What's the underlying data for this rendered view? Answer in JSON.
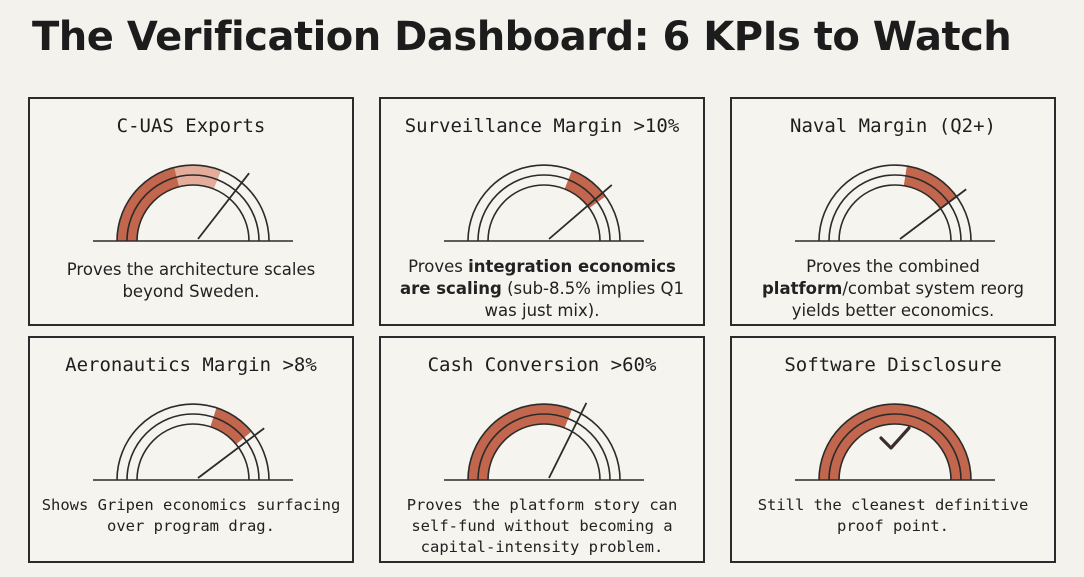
{
  "title": "The Verification Dashboard: 6 KPIs to Watch",
  "kpis": [
    {
      "title": "C-UAS Exports",
      "desc_parts": [
        {
          "text": "Proves the architecture scales beyond Sweden.",
          "bold": false
        }
      ],
      "fill_start": 0.0,
      "fill_end": 0.62,
      "light_start": 0.42,
      "needle": 0.72,
      "check": false,
      "mono_desc": false
    },
    {
      "title": "Surveillance Margin >10%",
      "desc_parts": [
        {
          "text": "Proves ",
          "bold": false
        },
        {
          "text": "integration economics are scaling",
          "bold": true
        },
        {
          "text": " (sub-8.5% implies Q1 was just mix).",
          "bold": false
        }
      ],
      "fill_start": 0.62,
      "fill_end": 0.8,
      "light_start": null,
      "needle": 0.78,
      "check": false,
      "mono_desc": false
    },
    {
      "title": "Naval Margin (Q2+)",
      "desc_parts": [
        {
          "text": "Proves the combined ",
          "bold": false
        },
        {
          "text": "platform",
          "bold": true
        },
        {
          "text": "/combat system reorg yields better economics.",
          "bold": false
        }
      ],
      "fill_start": 0.55,
      "fill_end": 0.8,
      "light_start": null,
      "needle": 0.8,
      "check": false,
      "mono_desc": false
    },
    {
      "title": "Aeronautics Margin >8%",
      "desc_parts": [
        {
          "text": "Shows Gripen economics surfacing over program drag.",
          "bold": false
        }
      ],
      "fill_start": 0.6,
      "fill_end": 0.78,
      "light_start": null,
      "needle": 0.8,
      "check": false,
      "mono_desc": true
    },
    {
      "title": "Cash Conversion >60%",
      "desc_parts": [
        {
          "text": "Proves the platform story can self-fund without becoming a capital-intensity problem.",
          "bold": false
        }
      ],
      "fill_start": 0.0,
      "fill_end": 0.62,
      "light_start": null,
      "needle": 0.66,
      "check": false,
      "mono_desc": true
    },
    {
      "title": "Software Disclosure",
      "desc_parts": [
        {
          "text": "Still the cleanest definitive proof point.",
          "bold": false
        }
      ],
      "fill_start": 0.0,
      "fill_end": 1.0,
      "light_start": null,
      "needle": null,
      "check": true,
      "mono_desc": true
    }
  ],
  "colors": {
    "fill": "#c2664d",
    "fill_light": "#eab8a8",
    "line": "#2b2b2b",
    "needle_tip": "#c2664d"
  }
}
